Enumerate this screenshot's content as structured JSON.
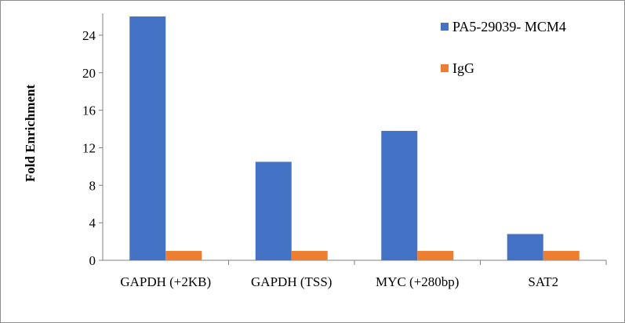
{
  "chart_data": {
    "type": "bar",
    "title": "",
    "xlabel": "",
    "ylabel": "Fold Enrichment",
    "categories": [
      "GAPDH (+2KB)",
      "GAPDH (TSS)",
      "MYC (+280bp)",
      "SAT2"
    ],
    "series": [
      {
        "name": "PA5-29039- MCM4",
        "color": "#4472c4",
        "values": [
          26.0,
          10.5,
          13.8,
          2.8
        ]
      },
      {
        "name": "IgG",
        "color": "#ed7d31",
        "values": [
          1.0,
          1.0,
          1.0,
          1.0
        ]
      }
    ],
    "ylim": [
      0,
      26
    ],
    "yticks": [
      0,
      4,
      8,
      12,
      16,
      20,
      24
    ],
    "grid": false,
    "legend_position": "top-right"
  }
}
